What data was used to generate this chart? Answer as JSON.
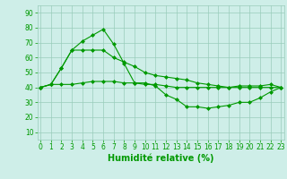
{
  "series": [
    {
      "x": [
        0,
        1,
        2,
        3,
        4,
        5,
        6,
        7,
        8,
        9,
        10,
        11,
        12,
        13,
        14,
        15,
        16,
        17,
        18,
        19,
        20,
        21,
        22,
        23
      ],
      "y": [
        40,
        42,
        53,
        65,
        71,
        75,
        79,
        69,
        56,
        43,
        43,
        41,
        35,
        32,
        27,
        27,
        26,
        27,
        28,
        30,
        30,
        33,
        37,
        40
      ],
      "linewidth": 0.8,
      "marker": "D",
      "markersize": 2.0
    },
    {
      "x": [
        0,
        1,
        2,
        3,
        4,
        5,
        6,
        7,
        8,
        9,
        10,
        11,
        12,
        13,
        14,
        15,
        16,
        17,
        18,
        19,
        20,
        21,
        22,
        23
      ],
      "y": [
        40,
        42,
        53,
        65,
        65,
        65,
        65,
        60,
        57,
        54,
        50,
        48,
        47,
        46,
        45,
        43,
        42,
        41,
        40,
        41,
        41,
        41,
        42,
        40
      ],
      "linewidth": 0.8,
      "marker": "D",
      "markersize": 2.0
    },
    {
      "x": [
        0,
        1,
        2,
        3,
        4,
        5,
        6,
        7,
        8,
        9,
        10,
        11,
        12,
        13,
        14,
        15,
        16,
        17,
        18,
        19,
        20,
        21,
        22,
        23
      ],
      "y": [
        40,
        42,
        42,
        42,
        43,
        44,
        44,
        44,
        43,
        43,
        42,
        42,
        41,
        40,
        40,
        40,
        40,
        40,
        40,
        40,
        40,
        40,
        40,
        40
      ],
      "linewidth": 0.8,
      "marker": "D",
      "markersize": 2.0
    }
  ],
  "xlabel": "Humidité relative (%)",
  "xlabel_fontsize": 7,
  "ylabel_ticks": [
    10,
    20,
    30,
    40,
    50,
    60,
    70,
    80,
    90
  ],
  "xticks": [
    0,
    1,
    2,
    3,
    4,
    5,
    6,
    7,
    8,
    9,
    10,
    11,
    12,
    13,
    14,
    15,
    16,
    17,
    18,
    19,
    20,
    21,
    22,
    23
  ],
  "xlim": [
    -0.3,
    23.3
  ],
  "ylim": [
    5,
    95
  ],
  "bg_color": "#ceeee8",
  "grid_color": "#99ccbb",
  "line_color": "#009900",
  "tick_fontsize": 5.5
}
